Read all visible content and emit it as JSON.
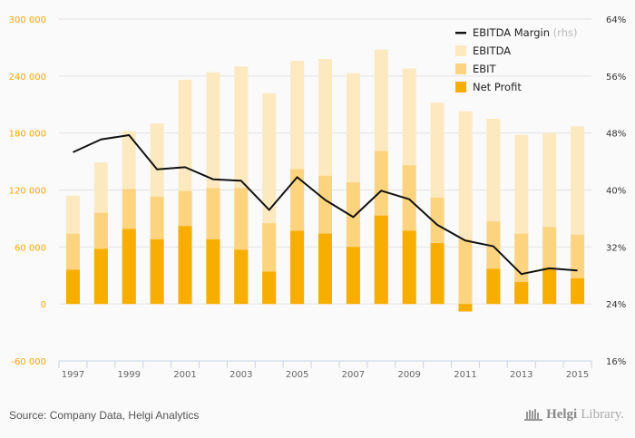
{
  "chart_data": {
    "type": "bar",
    "stacking": "overlapping",
    "title": "",
    "xlabel": "",
    "ylabel": "",
    "categories": [
      "1997",
      "1998",
      "1999",
      "2000",
      "2001",
      "2002",
      "2003",
      "2004",
      "2005",
      "2006",
      "2007",
      "2008",
      "2009",
      "2010",
      "2011",
      "2012",
      "2013",
      "2014",
      "2015"
    ],
    "x_tick_labels": [
      "1997",
      "1999",
      "2001",
      "2003",
      "2005",
      "2007",
      "2009",
      "2011",
      "2013",
      "2015"
    ],
    "ylim": [
      -60000,
      300000
    ],
    "y_ticks": [
      -60000,
      0,
      60000,
      120000,
      180000,
      240000,
      300000
    ],
    "y_tick_labels": [
      "-60 000",
      "0",
      "60 000",
      "120 000",
      "180 000",
      "240 000",
      "300 000"
    ],
    "y2lim": [
      16,
      64
    ],
    "y2_ticks": [
      16,
      24,
      32,
      40,
      48,
      56,
      64
    ],
    "y2_tick_labels": [
      "16%",
      "24%",
      "32%",
      "40%",
      "48%",
      "56%",
      "64%"
    ],
    "grid": true,
    "legend_position": "top-right",
    "series": [
      {
        "name": "EBITDA",
        "type": "bar",
        "color": "#fde9c0",
        "values": [
          114000,
          149000,
          182000,
          190000,
          236000,
          244000,
          250000,
          222000,
          256000,
          258000,
          243000,
          268000,
          248000,
          212000,
          203000,
          195000,
          178000,
          180000,
          187000
        ]
      },
      {
        "name": "EBIT",
        "type": "bar",
        "color": "#fcd480",
        "values": [
          74000,
          96000,
          121000,
          113000,
          119000,
          122000,
          122000,
          85000,
          142000,
          135000,
          128000,
          161000,
          146000,
          112000,
          68000,
          87000,
          74000,
          81000,
          73000
        ]
      },
      {
        "name": "Net Profit",
        "type": "bar",
        "color": "#f8ae00",
        "values": [
          36000,
          58000,
          79000,
          68000,
          82000,
          68000,
          57000,
          34000,
          77000,
          74000,
          60000,
          93000,
          77000,
          64000,
          -8000,
          37000,
          23000,
          38000,
          27000
        ]
      },
      {
        "name": "EBITDA Margin",
        "suffix": "(rhs)",
        "type": "line",
        "axis": "right",
        "color": "#111111",
        "values": [
          45.3,
          47.1,
          47.7,
          42.9,
          43.2,
          41.5,
          41.3,
          37.2,
          41.8,
          38.6,
          36.2,
          39.9,
          38.7,
          35.1,
          32.9,
          32.1,
          28.2,
          29.0,
          28.7
        ]
      }
    ],
    "legend": [
      {
        "label": "EBITDA Margin",
        "suffix": "(rhs)",
        "kind": "line",
        "color": "#111111"
      },
      {
        "label": "EBITDA",
        "kind": "box",
        "color": "#fde9c0"
      },
      {
        "label": "EBIT",
        "kind": "box",
        "color": "#fcd480"
      },
      {
        "label": "Net Profit",
        "kind": "box",
        "color": "#f8ae00"
      }
    ]
  },
  "footer": {
    "source": "Source: Company Data, Helgi Analytics",
    "brand_bold": "Helgi",
    "brand_light": "Library."
  }
}
